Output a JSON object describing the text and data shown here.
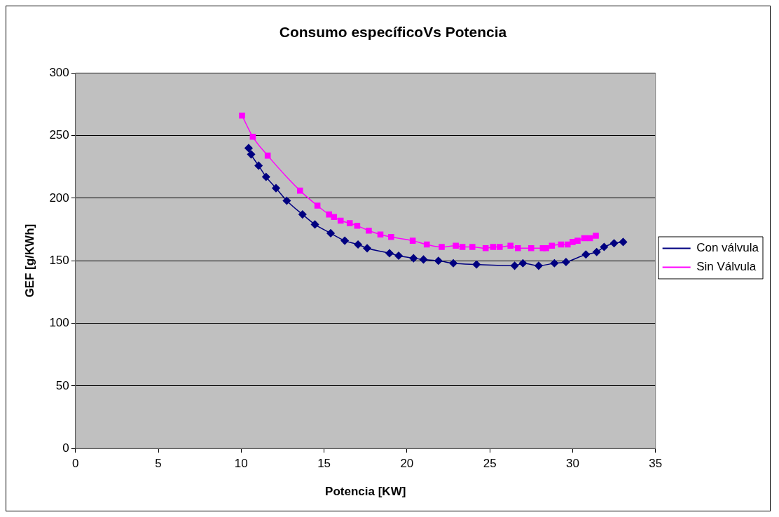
{
  "chart_data": {
    "type": "line",
    "title": "Consumo específicoVs Potencia",
    "xlabel": "Potencia [KW]",
    "ylabel": "GEF [g/KWh]",
    "xlim": [
      0,
      35
    ],
    "xticks": [
      0,
      5,
      10,
      15,
      20,
      25,
      30,
      35
    ],
    "ylim": [
      0,
      300
    ],
    "yticks": [
      0,
      50,
      100,
      150,
      200,
      250,
      300
    ],
    "grid": "y",
    "legend": "right",
    "series": [
      {
        "name": "Con válvula",
        "color": "#000080",
        "marker": "diamond",
        "x": [
          10.45,
          10.6,
          11.05,
          11.5,
          12.1,
          12.75,
          13.7,
          14.45,
          15.4,
          16.25,
          17.05,
          17.6,
          18.95,
          19.5,
          20.4,
          21.0,
          21.9,
          22.8,
          24.2,
          26.5,
          27.0,
          27.95,
          28.9,
          29.6,
          30.8,
          31.45,
          31.9,
          32.5,
          33.05
        ],
        "values": [
          240,
          235,
          226,
          217,
          208,
          198,
          187,
          179,
          172,
          166,
          163,
          160,
          156,
          154,
          152,
          151,
          150,
          148,
          147,
          146,
          148,
          146,
          148,
          149,
          155,
          157,
          161,
          164,
          165
        ]
      },
      {
        "name": "Sin Válvula",
        "color": "#ff00ff",
        "marker": "square",
        "x": [
          10.05,
          10.7,
          11.6,
          13.55,
          14.6,
          15.3,
          15.6,
          16.0,
          16.55,
          17.0,
          17.7,
          18.4,
          19.05,
          20.35,
          21.2,
          22.1,
          22.95,
          23.35,
          23.95,
          24.75,
          25.2,
          25.6,
          26.25,
          26.7,
          27.5,
          28.2,
          28.4,
          28.75,
          29.3,
          29.7,
          30.0,
          30.3,
          30.7,
          31.05,
          31.4
        ],
        "values": [
          266,
          249,
          234,
          206,
          194,
          187,
          185,
          182,
          180,
          178,
          174,
          171,
          169,
          166,
          163,
          161,
          162,
          161,
          161,
          160,
          161,
          161,
          162,
          160,
          160,
          160,
          160,
          162,
          163,
          163,
          165,
          166,
          168,
          168,
          170
        ]
      }
    ]
  }
}
